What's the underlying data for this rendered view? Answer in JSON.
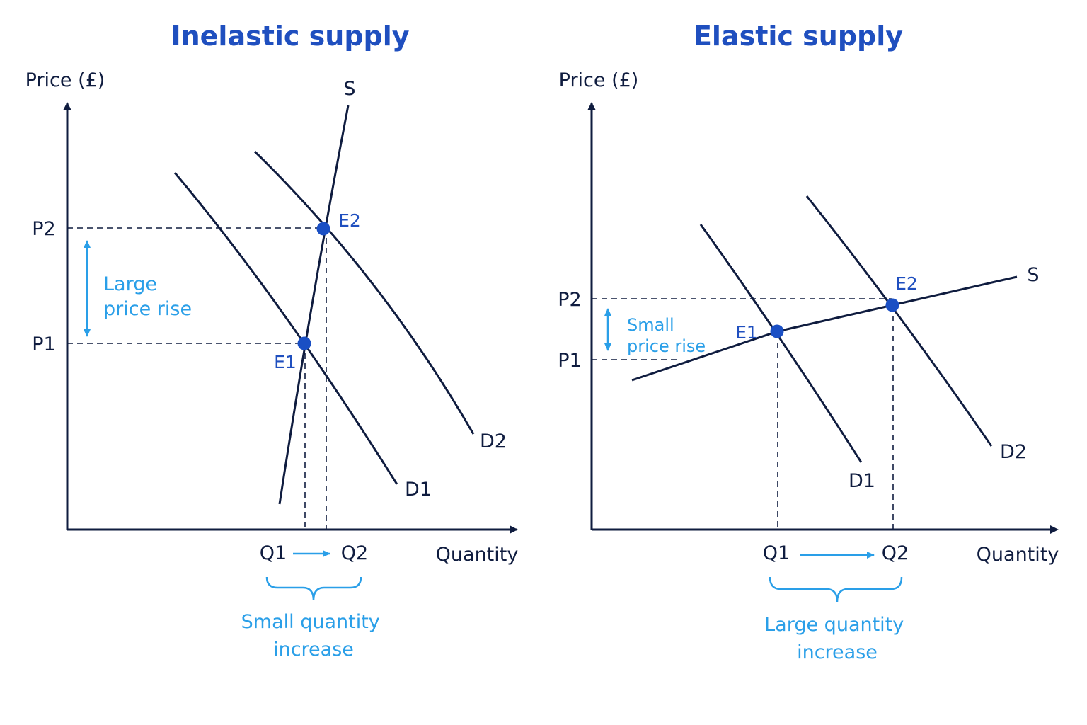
{
  "colors": {
    "ink": "#0f1c3f",
    "title": "#1f4fbf",
    "accent": "#2a9fe8",
    "point": "#1a4fc4"
  },
  "panels": [
    {
      "id": "inelastic",
      "title": "Inelastic supply",
      "y_axis_label": "Price (£)",
      "x_axis_label": "Quantity",
      "supply_label": "S",
      "demand_labels": [
        "D1",
        "D2"
      ],
      "points": [
        "E1",
        "E2"
      ],
      "price_levels": [
        "P1",
        "P2"
      ],
      "quantity_levels": [
        "Q1",
        "Q2"
      ],
      "price_note": [
        "Large",
        "price rise"
      ],
      "quantity_note": [
        "Small quantity",
        "increase"
      ]
    },
    {
      "id": "elastic",
      "title": "Elastic supply",
      "y_axis_label": "Price (£)",
      "x_axis_label": "Quantity",
      "supply_label": "S",
      "demand_labels": [
        "D1",
        "D2"
      ],
      "points": [
        "E1",
        "E2"
      ],
      "price_levels": [
        "P1",
        "P2"
      ],
      "quantity_levels": [
        "Q1",
        "Q2"
      ],
      "price_note": [
        "Small",
        "price rise"
      ],
      "quantity_note": [
        "Large quantity",
        "increase"
      ]
    }
  ]
}
